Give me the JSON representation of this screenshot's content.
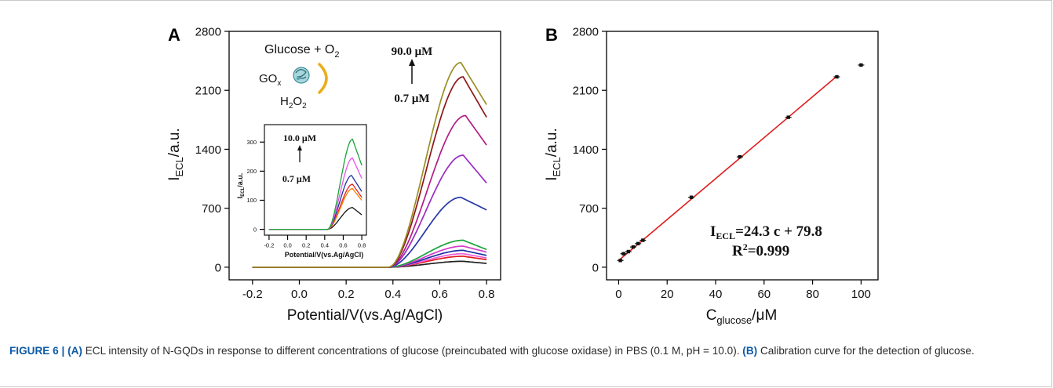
{
  "caption": {
    "figure_label": "FIGURE 6 |",
    "a_tag": "(A)",
    "a_text": " ECL intensity of N-GQDs in response to different concentrations of glucose (preincubated with glucose oxidase) in PBS (0.1 M, pH = 10.0). ",
    "b_tag": "(B)",
    "b_text": " Calibration curve for the detection of glucose."
  },
  "chart_data": [
    {
      "panel": "A",
      "type": "line",
      "xlabel": "Potential/V(vs.Ag/AgCl)",
      "ylabel_main": "I",
      "ylabel_sub": "ECL",
      "ylabel_tail": "/a.u.",
      "xlim": [
        -0.3,
        0.86
      ],
      "ylim": [
        -150,
        2800
      ],
      "xticks": [
        "-0.2",
        "0.0",
        "0.2",
        "0.4",
        "0.6",
        "0.8"
      ],
      "xtick_values": [
        -0.2,
        0.0,
        0.2,
        0.4,
        0.6,
        0.8
      ],
      "yticks": [
        "0",
        "700",
        "1400",
        "2100",
        "2800"
      ],
      "ytick_values": [
        0,
        700,
        1400,
        2100,
        2800
      ],
      "annotation_high": "90.0 μM",
      "annotation_low": "0.7 μM",
      "scheme": {
        "glucose_label": "Glucose + O",
        "glucose_sub": "2",
        "enzyme_main": "GO",
        "enzyme_sub": "x",
        "product_pre": "H",
        "product_sub1": "2",
        "product_mid": "O",
        "product_sub2": "2"
      },
      "series": [
        {
          "color": "#222222",
          "peak_x": 0.7,
          "peak": 70,
          "end": 45
        },
        {
          "color": "#e0181b",
          "peak_x": 0.7,
          "peak": 130,
          "end": 90
        },
        {
          "color": "#f05ad9",
          "peak_x": 0.7,
          "peak": 160,
          "end": 110
        },
        {
          "color": "#1f2ea0",
          "peak_x": 0.7,
          "peak": 200,
          "end": 140
        },
        {
          "color": "#d43cc6",
          "peak_x": 0.7,
          "peak": 250,
          "end": 180
        },
        {
          "color": "#1aa33a",
          "peak_x": 0.7,
          "peak": 320,
          "end": 210
        },
        {
          "color": "#2536a8",
          "peak_x": 0.69,
          "peak": 830,
          "end": 680
        },
        {
          "color": "#9b2bc4",
          "peak_x": 0.7,
          "peak": 1330,
          "end": 1000
        },
        {
          "color": "#b01e86",
          "peak_x": 0.71,
          "peak": 1800,
          "end": 1450
        },
        {
          "color": "#8e1717",
          "peak_x": 0.7,
          "peak": 2260,
          "end": 1780
        },
        {
          "color": "#9a8f25",
          "peak_x": 0.69,
          "peak": 2430,
          "end": 1930
        }
      ],
      "inset": {
        "type": "line",
        "xlabel": "Potential/V(vs.Ag/AgCl)",
        "ylabel_main": "I",
        "ylabel_sub": "ECL",
        "ylabel_tail": "/a.u.",
        "xlim": [
          -0.25,
          0.85
        ],
        "ylim": [
          -20,
          360
        ],
        "xticks": [
          "-0.2",
          "0.0",
          "0.2",
          "0.4",
          "0.6",
          "0.8"
        ],
        "xtick_values": [
          -0.2,
          0.0,
          0.2,
          0.4,
          0.6,
          0.8
        ],
        "yticks": [
          "0",
          "100",
          "200",
          "300"
        ],
        "ytick_values": [
          0,
          100,
          200,
          300
        ],
        "annotation_high": "10.0 μM",
        "annotation_low": "0.7 μM",
        "series": [
          {
            "color": "#111111",
            "peak_x": 0.7,
            "peak": 75,
            "end": 50
          },
          {
            "color": "#e52020",
            "peak_x": 0.7,
            "peak": 155,
            "end": 110
          },
          {
            "color": "#ff7b00",
            "peak_x": 0.7,
            "peak": 140,
            "end": 100
          },
          {
            "color": "#1f2ea0",
            "peak_x": 0.69,
            "peak": 185,
            "end": 130
          },
          {
            "color": "#ef4ff0",
            "peak_x": 0.7,
            "peak": 245,
            "end": 175
          },
          {
            "color": "#1aa33a",
            "peak_x": 0.7,
            "peak": 310,
            "end": 220
          }
        ]
      }
    },
    {
      "panel": "B",
      "type": "scatter",
      "xlabel_main": "C",
      "xlabel_sub": "glucose",
      "xlabel_tail": "/μM",
      "ylabel_main": "I",
      "ylabel_sub": "ECL",
      "ylabel_tail": "/a.u.",
      "xlim": [
        -5,
        107
      ],
      "ylim": [
        -150,
        2800
      ],
      "xticks": [
        "0",
        "20",
        "40",
        "60",
        "80",
        "100"
      ],
      "xtick_values": [
        0,
        20,
        40,
        60,
        80,
        100
      ],
      "yticks": [
        "0",
        "700",
        "1400",
        "2100",
        "2800"
      ],
      "ytick_values": [
        0,
        700,
        1400,
        2100,
        2800
      ],
      "x": [
        0.7,
        2,
        4,
        6,
        8,
        10,
        30,
        50,
        70,
        90,
        100
      ],
      "y": [
        80,
        160,
        185,
        240,
        280,
        320,
        830,
        1310,
        1780,
        2260,
        2400
      ],
      "fit": {
        "slope": 24.3,
        "intercept": 79.8,
        "x_range": [
          0.7,
          90
        ]
      },
      "equation_main": "I",
      "equation_sub": "ECL",
      "equation_tail": "=24.3 c + 79.8",
      "r2_main": "R",
      "r2_sup": "2",
      "r2_tail": "=0.999",
      "fit_color": "#e11b1b"
    }
  ]
}
